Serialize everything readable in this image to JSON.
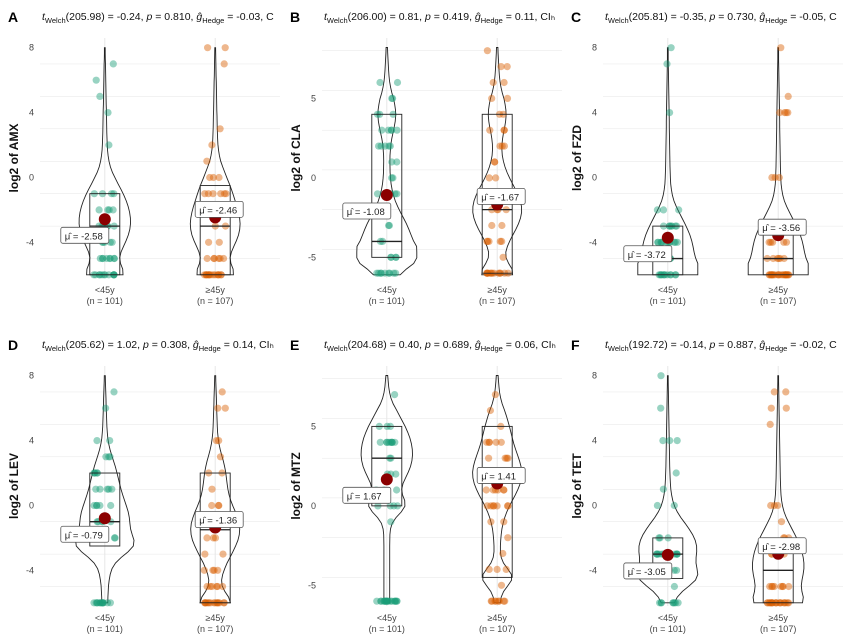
{
  "chart_data": [
    {
      "type": "violin",
      "panel": "A",
      "title": {
        "stat": "Welch",
        "df": "(205.98)",
        "t": "-0.24",
        "p": "0.810",
        "g": "-0.03",
        "tail": "C"
      },
      "ylabel": "log2 of AMX",
      "yticks": [
        8,
        4,
        0,
        -4
      ],
      "ylim": [
        -6.2,
        8.6
      ],
      "groups": [
        {
          "label": "<45y",
          "n": "(n = 101)",
          "mean": -2.58,
          "mean_label": "-2.58",
          "q1": -6,
          "median": -3,
          "q3": -1
        },
        {
          "label": "≥45y",
          "n": "(n = 107)",
          "mean": -2.46,
          "mean_label": "-2.46",
          "q1": -6,
          "median": -3,
          "q3": -0.5
        }
      ]
    },
    {
      "type": "violin",
      "panel": "B",
      "title": {
        "stat": "Welch",
        "df": "(206.00)",
        "t": "0.81",
        "p": "0.419",
        "g": "0.11",
        "tail": "CIₕ"
      },
      "ylabel": "log2 of CLA",
      "yticks": [
        5,
        0,
        -5
      ],
      "ylim": [
        -6.3,
        8.8
      ],
      "groups": [
        {
          "label": "<45y",
          "n": "(n = 101)",
          "mean": -1.08,
          "mean_label": "-1.08",
          "q1": -5,
          "median": -4,
          "q3": 4
        },
        {
          "label": "≥45y",
          "n": "(n = 107)",
          "mean": -1.67,
          "mean_label": "-1.67",
          "q1": -6,
          "median": -2,
          "q3": 4
        }
      ]
    },
    {
      "type": "violin",
      "panel": "C",
      "title": {
        "stat": "Welch",
        "df": "(205.81)",
        "t": "-0.35",
        "p": "0.730",
        "g": "-0.05",
        "tail": "C"
      },
      "ylabel": "log2 of FZD",
      "yticks": [
        8,
        4,
        0,
        -4
      ],
      "ylim": [
        -6.2,
        8.6
      ],
      "groups": [
        {
          "label": "<45y",
          "n": "(n = 101)",
          "mean": -3.72,
          "mean_label": "-3.72",
          "q1": -6,
          "median": -5,
          "q3": -3
        },
        {
          "label": "≥45y",
          "n": "(n = 107)",
          "mean": -3.56,
          "mean_label": "-3.56",
          "q1": -6,
          "median": -5,
          "q3": -3
        }
      ]
    },
    {
      "type": "violin",
      "panel": "D",
      "title": {
        "stat": "Welch",
        "df": "(205.62)",
        "t": "1.02",
        "p": "0.308",
        "g": "0.14",
        "tail": "CIₕ"
      },
      "ylabel": "log2 of LEV",
      "yticks": [
        8,
        4,
        0,
        -4
      ],
      "ylim": [
        -6.2,
        8.6
      ],
      "groups": [
        {
          "label": "<45y",
          "n": "(n = 101)",
          "mean": -0.79,
          "mean_label": "-0.79",
          "q1": -2.5,
          "median": -1,
          "q3": 2
        },
        {
          "label": "≥45y",
          "n": "(n = 107)",
          "mean": -1.36,
          "mean_label": "-1.36",
          "q1": -6,
          "median": -1.5,
          "q3": 2
        }
      ]
    },
    {
      "type": "violin",
      "panel": "E",
      "title": {
        "stat": "Welch",
        "df": "(204.68)",
        "t": "0.40",
        "p": "0.689",
        "g": "0.06",
        "tail": "CIₕ"
      },
      "ylabel": "log2 of MTZ",
      "yticks": [
        5,
        0,
        -5
      ],
      "ylim": [
        -6.3,
        8.8
      ],
      "groups": [
        {
          "label": "<45y",
          "n": "(n = 101)",
          "mean": 1.67,
          "mean_label": "1.67",
          "q1": 0,
          "median": 3,
          "q3": 5
        },
        {
          "label": "≥45y",
          "n": "(n = 107)",
          "mean": 1.41,
          "mean_label": "1.41",
          "q1": -4.5,
          "median": 2,
          "q3": 5
        }
      ]
    },
    {
      "type": "violin",
      "panel": "F",
      "title": {
        "stat": "Welch",
        "df": "(192.72)",
        "t": "-0.14",
        "p": "0.887",
        "g": "-0.02",
        "tail": "C"
      },
      "ylabel": "log2 of TET",
      "yticks": [
        8,
        4,
        0,
        -4
      ],
      "ylim": [
        -6.2,
        8.6
      ],
      "groups": [
        {
          "label": "<45y",
          "n": "(n = 101)",
          "mean": -3.05,
          "mean_label": "-3.05",
          "q1": -4.5,
          "median": -3,
          "q3": -2
        },
        {
          "label": "≥45y",
          "n": "(n = 107)",
          "mean": -2.98,
          "mean_label": "-2.98",
          "q1": -6,
          "median": -4,
          "q3": -2
        }
      ]
    }
  ],
  "colors": {
    "group1": "#1b9e77",
    "group2": "#d95f02",
    "mean_point": "#8b0000",
    "grid": "#e6e6e6"
  }
}
